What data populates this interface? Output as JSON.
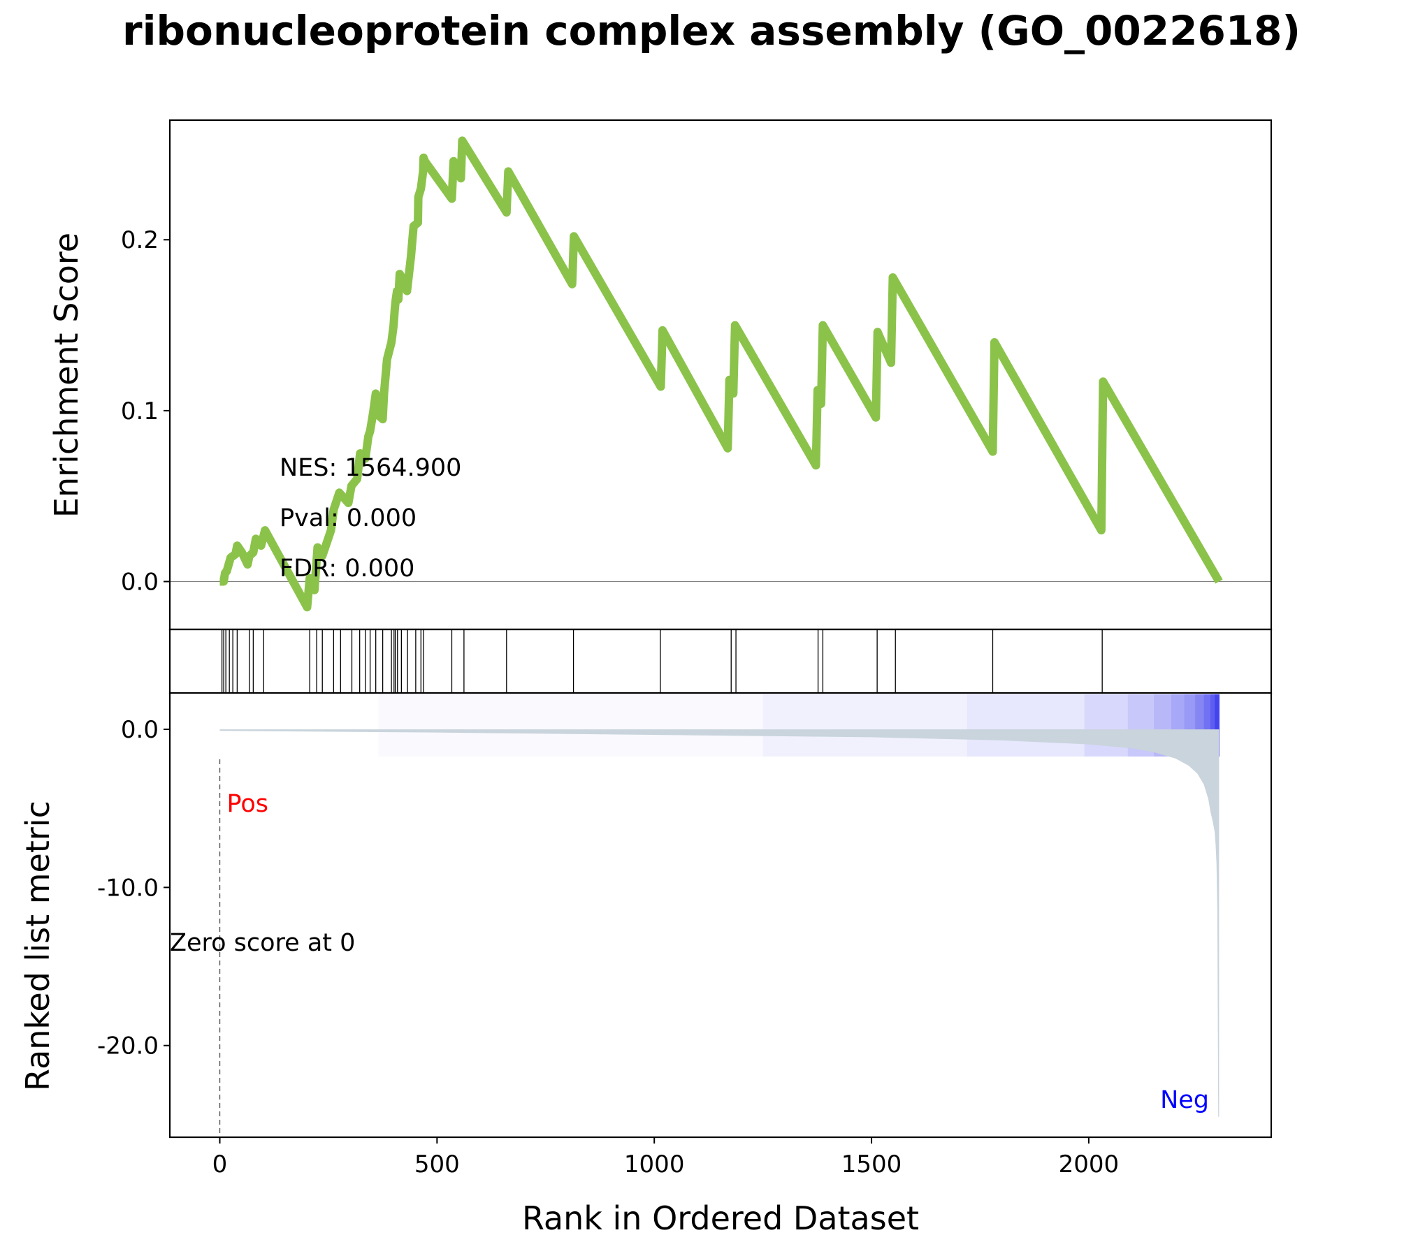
{
  "chart_data": {
    "title": "ribonucleoprotein complex assembly (GO_0022618)",
    "xlabel": "Rank in Ordered Dataset",
    "x_ticks": [
      0,
      500,
      1000,
      1500,
      2000
    ],
    "xlim": [
      -115,
      2420
    ],
    "panels": [
      {
        "type": "line",
        "name": "enrichment-score",
        "ylabel": "Enrichment Score",
        "ylim": [
          -0.028,
          0.27
        ],
        "y_ticks": [
          0.0,
          0.1,
          0.2
        ],
        "y_tick_labels": [
          "0.0",
          "0.1",
          "0.2"
        ],
        "line_color": "#8bc34a",
        "zero_line": true,
        "annotations": [
          "NES: 1564.900",
          "Pval: 0.000",
          "FDR: 0.000"
        ],
        "x": [
          0,
          5,
          9,
          12,
          16,
          25,
          36,
          40,
          51,
          64,
          68,
          77,
          83,
          95,
          104,
          201,
          207,
          218,
          225,
          236,
          256,
          262,
          275,
          296,
          303,
          316,
          323,
          335,
          342,
          346,
          353,
          359,
          362,
          375,
          378,
          385,
          395,
          400,
          403,
          405,
          408,
          411,
          414,
          424,
          431,
          440,
          446,
          456,
          457,
          463,
          468,
          469,
          472,
          534,
          538,
          555,
          558,
          660,
          664,
          811,
          815,
          1015,
          1019,
          1169,
          1173,
          1182,
          1186,
          1372,
          1376,
          1384,
          1388,
          1510,
          1514,
          1545,
          1549,
          1779,
          1783,
          2029,
          2033,
          2300
        ],
        "y": [
          0.0,
          0.0,
          0.0,
          0.005,
          0.006,
          0.014,
          0.016,
          0.021,
          0.017,
          0.01,
          0.015,
          0.017,
          0.025,
          0.021,
          0.03,
          -0.015,
          0.002,
          -0.005,
          0.02,
          0.015,
          0.03,
          0.042,
          0.052,
          0.046,
          0.056,
          0.06,
          0.075,
          0.072,
          0.085,
          0.088,
          0.099,
          0.11,
          0.098,
          0.095,
          0.11,
          0.13,
          0.14,
          0.15,
          0.16,
          0.165,
          0.17,
          0.165,
          0.18,
          0.176,
          0.17,
          0.19,
          0.208,
          0.21,
          0.225,
          0.23,
          0.24,
          0.248,
          0.246,
          0.224,
          0.246,
          0.236,
          0.258,
          0.216,
          0.24,
          0.174,
          0.202,
          0.114,
          0.147,
          0.078,
          0.118,
          0.11,
          0.15,
          0.068,
          0.112,
          0.104,
          0.15,
          0.096,
          0.146,
          0.128,
          0.178,
          0.076,
          0.14,
          0.03,
          0.117,
          0.0
        ]
      },
      {
        "type": "rug",
        "name": "gene-hits",
        "x": [
          5,
          9,
          14,
          22,
          30,
          40,
          68,
          77,
          101,
          207,
          223,
          236,
          262,
          278,
          304,
          322,
          335,
          346,
          359,
          375,
          395,
          401,
          404,
          409,
          418,
          432,
          451,
          463,
          469,
          534,
          562,
          660,
          814,
          1014,
          1177,
          1188,
          1377,
          1388,
          1513,
          1555,
          1779,
          2031
        ]
      },
      {
        "type": "heatmap",
        "name": "ranking-colorbar",
        "x": [
          0,
          365,
          1250,
          1720,
          1990,
          2090,
          2150,
          2190,
          2220,
          2245,
          2265,
          2280,
          2290,
          2300
        ],
        "values": [
          0.0,
          0.03,
          0.07,
          0.12,
          0.2,
          0.28,
          0.36,
          0.44,
          0.52,
          0.62,
          0.72,
          0.82,
          0.95
        ],
        "colors": {
          "low": "#ffffff",
          "high": "#3a3aee"
        }
      },
      {
        "type": "area",
        "name": "ranked-list-metric",
        "ylabel": "Ranked list metric",
        "ylim": [
          -25.8,
          2.3
        ],
        "y_ticks": [
          0.0,
          -10.0,
          -20.0
        ],
        "y_tick_labels": [
          "0.0",
          "-10.0",
          "-20.0"
        ],
        "fill_color": "#c9d4dc",
        "x": [
          0,
          500,
          1000,
          1500,
          1800,
          2000,
          2100,
          2150,
          2200,
          2230,
          2250,
          2265,
          2275,
          2280,
          2285,
          2290,
          2292,
          2294,
          2296,
          2298,
          2300
        ],
        "y": [
          -0.1,
          -0.2,
          -0.35,
          -0.5,
          -0.7,
          -0.95,
          -1.2,
          -1.45,
          -1.85,
          -2.3,
          -2.8,
          -3.5,
          -4.4,
          -5.2,
          -5.8,
          -6.5,
          -7.3,
          -8.5,
          -11.5,
          -24.5,
          -24.5
        ],
        "zero_score_x": 0,
        "labels": {
          "pos": "Pos",
          "neg": "Neg",
          "zero": "Zero score at 0"
        },
        "colors": {
          "pos": "#ff0000",
          "neg": "#0000ff"
        }
      }
    ]
  }
}
